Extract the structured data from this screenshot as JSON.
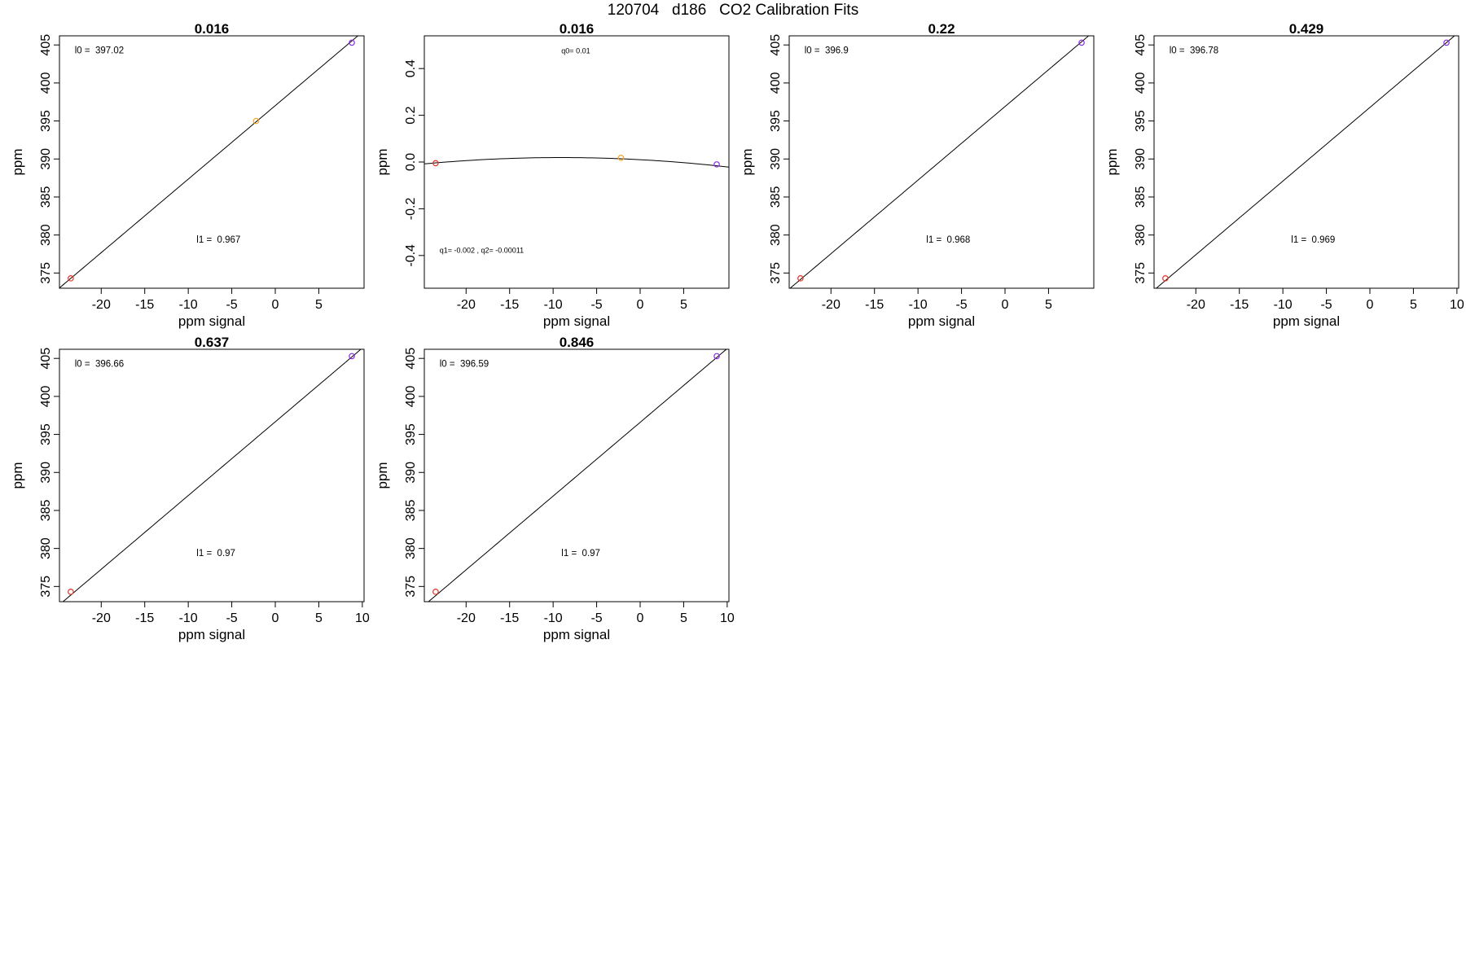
{
  "page_title": "120704   d186   CO2 Calibration Fits",
  "colors": {
    "point_low": "#e8332a",
    "point_mid": "#f5a623",
    "point_high": "#8a2be2",
    "line": "#000000"
  },
  "chart_data": [
    {
      "type": "line",
      "title": "0.016",
      "xlabel": "ppm signal",
      "ylabel": "ppm",
      "xlim": [
        -24.8,
        10.2
      ],
      "ylim": [
        373.0,
        406.2
      ],
      "xticks": [
        "-20",
        "-15",
        "-10",
        "-5",
        "0",
        "5"
      ],
      "xtick_values": [
        -20,
        -15,
        -10,
        -5,
        0,
        5
      ],
      "yticks": [
        "375",
        "380",
        "385",
        "390",
        "395",
        "400",
        "405"
      ],
      "ytick_values": [
        375,
        380,
        385,
        390,
        395,
        400,
        405
      ],
      "fit": {
        "kind": "linear",
        "l0": 397.02,
        "l1": 0.967
      },
      "points": [
        {
          "x": -23.5,
          "y": 374.3,
          "color": "point_low"
        },
        {
          "x": -2.2,
          "y": 395.0,
          "color": "point_mid"
        },
        {
          "x": 8.8,
          "y": 405.3,
          "color": "point_high"
        }
      ],
      "annotations": [
        "l0 =  397.02",
        "l1 =  0.967"
      ]
    },
    {
      "type": "line",
      "title": "0.016",
      "xlabel": "ppm signal",
      "ylabel": "ppm",
      "xlim": [
        -24.8,
        10.2
      ],
      "ylim": [
        -0.54,
        0.54
      ],
      "xticks": [
        "-20",
        "-15",
        "-10",
        "-5",
        "0",
        "5"
      ],
      "xtick_values": [
        -20,
        -15,
        -10,
        -5,
        0,
        5
      ],
      "yticks": [
        "-0.4",
        "-0.2",
        "0.0",
        "0.2",
        "0.4"
      ],
      "ytick_values": [
        -0.4,
        -0.2,
        0.0,
        0.2,
        0.4
      ],
      "fit": {
        "kind": "quadratic",
        "q0": 0.01,
        "q1": -0.002,
        "q2": -0.00011
      },
      "points": [
        {
          "x": -23.5,
          "y": -0.005,
          "color": "point_low"
        },
        {
          "x": -2.2,
          "y": 0.018,
          "color": "point_mid"
        },
        {
          "x": 8.8,
          "y": -0.01,
          "color": "point_high"
        }
      ],
      "annotations": [
        "q0= 0.01",
        "q1= -0.002 , q2= -0.00011"
      ]
    },
    {
      "type": "line",
      "title": "0.22",
      "xlabel": "ppm signal",
      "ylabel": "ppm",
      "xlim": [
        -24.8,
        10.2
      ],
      "ylim": [
        373.0,
        406.2
      ],
      "xticks": [
        "-20",
        "-15",
        "-10",
        "-5",
        "0",
        "5"
      ],
      "xtick_values": [
        -20,
        -15,
        -10,
        -5,
        0,
        5
      ],
      "yticks": [
        "375",
        "380",
        "385",
        "390",
        "395",
        "400",
        "405"
      ],
      "ytick_values": [
        375,
        380,
        385,
        390,
        395,
        400,
        405
      ],
      "fit": {
        "kind": "linear",
        "l0": 396.9,
        "l1": 0.968
      },
      "points": [
        {
          "x": -23.5,
          "y": 374.3,
          "color": "point_low"
        },
        {
          "x": 8.8,
          "y": 405.3,
          "color": "point_high"
        }
      ],
      "annotations": [
        "l0 =  396.9",
        "l1 =  0.968"
      ]
    },
    {
      "type": "line",
      "title": "0.429",
      "xlabel": "ppm signal",
      "ylabel": "ppm",
      "xlim": [
        -24.8,
        10.2
      ],
      "ylim": [
        373.0,
        406.2
      ],
      "xticks": [
        "-20",
        "-15",
        "-10",
        "-5",
        "0",
        "5",
        "10"
      ],
      "xtick_values": [
        -20,
        -15,
        -10,
        -5,
        0,
        5,
        10
      ],
      "yticks": [
        "375",
        "380",
        "385",
        "390",
        "395",
        "400",
        "405"
      ],
      "ytick_values": [
        375,
        380,
        385,
        390,
        395,
        400,
        405
      ],
      "fit": {
        "kind": "linear",
        "l0": 396.78,
        "l1": 0.969
      },
      "points": [
        {
          "x": -23.5,
          "y": 374.3,
          "color": "point_low"
        },
        {
          "x": 8.8,
          "y": 405.3,
          "color": "point_high"
        }
      ],
      "annotations": [
        "l0 =  396.78",
        "l1 =  0.969"
      ]
    },
    {
      "type": "line",
      "title": "0.637",
      "xlabel": "ppm signal",
      "ylabel": "ppm",
      "xlim": [
        -24.8,
        10.2
      ],
      "ylim": [
        373.0,
        406.2
      ],
      "xticks": [
        "-20",
        "-15",
        "-10",
        "-5",
        "0",
        "5",
        "10"
      ],
      "xtick_values": [
        -20,
        -15,
        -10,
        -5,
        0,
        5,
        10
      ],
      "yticks": [
        "375",
        "380",
        "385",
        "390",
        "395",
        "400",
        "405"
      ],
      "ytick_values": [
        375,
        380,
        385,
        390,
        395,
        400,
        405
      ],
      "fit": {
        "kind": "linear",
        "l0": 396.66,
        "l1": 0.97
      },
      "points": [
        {
          "x": -23.5,
          "y": 374.3,
          "color": "point_low"
        },
        {
          "x": 8.8,
          "y": 405.3,
          "color": "point_high"
        }
      ],
      "annotations": [
        "l0 =  396.66",
        "l1 =  0.97"
      ]
    },
    {
      "type": "line",
      "title": "0.846",
      "xlabel": "ppm signal",
      "ylabel": "ppm",
      "xlim": [
        -24.8,
        10.2
      ],
      "ylim": [
        373.0,
        406.2
      ],
      "xticks": [
        "-20",
        "-15",
        "-10",
        "-5",
        "0",
        "5",
        "10"
      ],
      "xtick_values": [
        -20,
        -15,
        -10,
        -5,
        0,
        5,
        10
      ],
      "yticks": [
        "375",
        "380",
        "385",
        "390",
        "395",
        "400",
        "405"
      ],
      "ytick_values": [
        375,
        380,
        385,
        390,
        395,
        400,
        405
      ],
      "fit": {
        "kind": "linear",
        "l0": 396.59,
        "l1": 0.97
      },
      "points": [
        {
          "x": -23.5,
          "y": 374.3,
          "color": "point_low"
        },
        {
          "x": 8.8,
          "y": 405.3,
          "color": "point_high"
        }
      ],
      "annotations": [
        "l0 =  396.59",
        "l1 =  0.97"
      ]
    }
  ]
}
